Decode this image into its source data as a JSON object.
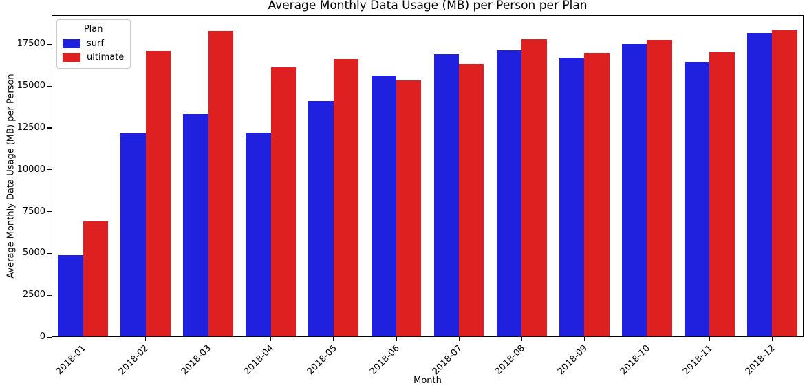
{
  "chart_data": {
    "type": "bar",
    "title": "Average Monthly Data Usage (MB) per Person per Plan",
    "xlabel": "Month",
    "ylabel": "Average Monthly Data Usage (MB) per Person",
    "categories": [
      "2018-01",
      "2018-02",
      "2018-03",
      "2018-04",
      "2018-05",
      "2018-06",
      "2018-07",
      "2018-08",
      "2018-09",
      "2018-10",
      "2018-11",
      "2018-12"
    ],
    "series": [
      {
        "name": "surf",
        "color": "#2020DF",
        "values": [
          4900,
          12160,
          13320,
          12210,
          14100,
          15610,
          16900,
          17130,
          16680,
          17530,
          16440,
          18160
        ]
      },
      {
        "name": "ultimate",
        "color": "#DF2020",
        "values": [
          6920,
          17100,
          18290,
          16110,
          16620,
          15320,
          16330,
          17810,
          16980,
          17750,
          17030,
          18320
        ]
      }
    ],
    "ylim": [
      0,
      19240
    ],
    "yticks": [
      0,
      2500,
      5000,
      7500,
      10000,
      12500,
      15000,
      17500
    ],
    "grid": false,
    "legend_position": "upper left",
    "bar_group_width_fraction": 0.8
  },
  "legend": {
    "title": "Plan",
    "items": [
      {
        "label": "surf",
        "color": "#2020DF"
      },
      {
        "label": "ultimate",
        "color": "#DF2020"
      }
    ]
  }
}
